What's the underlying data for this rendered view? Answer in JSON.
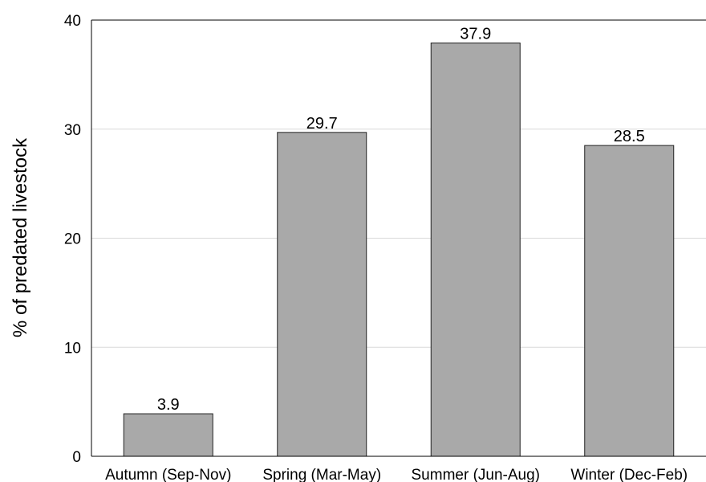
{
  "chart_data": {
    "type": "bar",
    "title": "",
    "xlabel": "",
    "ylabel": "% of predated livestock",
    "categories": [
      "Autumn (Sep-Nov)",
      "Spring (Mar-May)",
      "Summer (Jun-Aug)",
      "Winter (Dec-Feb)"
    ],
    "values": [
      3.9,
      29.7,
      37.9,
      28.5
    ],
    "data_labels": [
      "3.9",
      "29.7",
      "37.9",
      "28.5"
    ],
    "yticks": [
      0,
      10,
      20,
      30,
      40
    ],
    "ylim": [
      0,
      40
    ],
    "grid": "horizontal",
    "legend": "none",
    "colors": {
      "bar_fill": "#a9a9a9",
      "bar_stroke": "#222222",
      "grid": "#d9d9d9",
      "axis": "#000000"
    }
  }
}
